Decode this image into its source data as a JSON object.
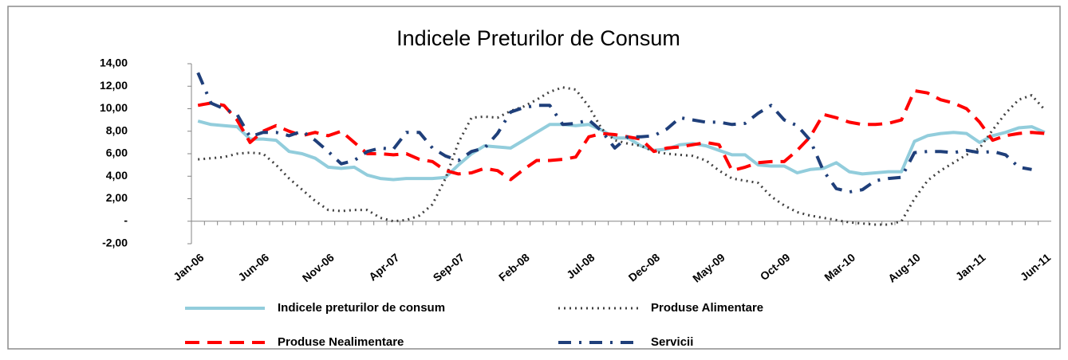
{
  "chart_data": {
    "type": "line",
    "title": "Indicele Preturilor de Consum",
    "categories": [
      "Jan-06",
      null,
      null,
      null,
      null,
      "Jun-06",
      null,
      null,
      null,
      null,
      "Nov-06",
      null,
      null,
      null,
      null,
      "Apr-07",
      null,
      null,
      null,
      null,
      "Sep-07",
      null,
      null,
      null,
      null,
      "Feb-08",
      null,
      null,
      null,
      null,
      "Jul-08",
      null,
      null,
      null,
      null,
      "Dec-08",
      null,
      null,
      null,
      null,
      "May-09",
      null,
      null,
      null,
      null,
      "Oct-09",
      null,
      null,
      null,
      null,
      "Mar-10",
      null,
      null,
      null,
      null,
      "Aug-10",
      null,
      null,
      null,
      null,
      "Jan-11",
      null,
      null,
      null,
      null,
      "Jun-11"
    ],
    "series": [
      {
        "name": "Indicele preturilor de consum",
        "color": "#92cddc",
        "dash": "solid",
        "values": [
          8.9,
          8.6,
          8.5,
          8.4,
          7.3,
          7.3,
          7.2,
          6.2,
          6.0,
          5.6,
          4.8,
          4.7,
          4.8,
          4.1,
          3.8,
          3.7,
          3.8,
          3.8,
          3.8,
          3.9,
          5.0,
          6.0,
          6.7,
          6.6,
          6.5,
          7.2,
          7.9,
          8.6,
          8.6,
          8.5,
          8.6,
          8.1,
          7.4,
          7.4,
          6.7,
          6.3,
          6.4,
          6.8,
          6.9,
          6.7,
          6.3,
          5.9,
          5.9,
          5.0,
          4.9,
          4.9,
          4.3,
          4.6,
          4.7,
          5.2,
          4.4,
          4.2,
          4.3,
          4.4,
          4.4,
          7.1,
          7.6,
          7.8,
          7.9,
          7.8,
          7.0,
          7.6,
          7.9,
          8.3,
          8.4,
          7.9
        ]
      },
      {
        "name": "Produse Alimentare",
        "color": "#404040",
        "dash": "dot",
        "values": [
          5.5,
          5.6,
          5.7,
          6.0,
          6.1,
          6.0,
          5.0,
          3.8,
          2.8,
          1.8,
          1.0,
          0.9,
          1.0,
          1.0,
          0.3,
          0.0,
          0.1,
          0.5,
          1.5,
          3.8,
          7.0,
          9.2,
          9.3,
          9.2,
          9.8,
          10.2,
          10.8,
          11.5,
          11.9,
          11.7,
          10.2,
          8.2,
          7.2,
          6.9,
          6.7,
          6.2,
          6.0,
          5.9,
          5.8,
          5.4,
          4.5,
          3.8,
          3.6,
          3.4,
          2.2,
          1.4,
          0.8,
          0.5,
          0.3,
          0.1,
          -0.1,
          -0.2,
          -0.3,
          -0.3,
          0.0,
          2.0,
          3.6,
          4.5,
          5.2,
          5.9,
          6.5,
          8.1,
          9.6,
          10.8,
          11.2,
          9.9
        ]
      },
      {
        "name": "Produse Nealimentare",
        "color": "#ff0000",
        "dash": "dash",
        "values": [
          10.3,
          10.5,
          10.3,
          9.0,
          7.0,
          8.0,
          8.5,
          8.0,
          7.6,
          7.9,
          7.6,
          8.0,
          7.0,
          6.0,
          6.0,
          5.9,
          6.0,
          5.5,
          5.3,
          4.5,
          4.2,
          4.3,
          4.7,
          4.5,
          3.7,
          4.6,
          5.4,
          5.4,
          5.5,
          5.7,
          7.5,
          7.8,
          7.7,
          7.5,
          7.3,
          6.2,
          6.5,
          6.6,
          6.8,
          7.0,
          6.8,
          4.5,
          4.8,
          5.2,
          5.3,
          5.3,
          6.3,
          7.5,
          9.5,
          9.2,
          8.8,
          8.6,
          8.6,
          8.7,
          9.0,
          11.6,
          11.4,
          10.8,
          10.5,
          10.0,
          8.8,
          7.2,
          7.6,
          7.8,
          7.9,
          7.8
        ]
      },
      {
        "name": "Servicii",
        "color": "#1f3f7a",
        "dash": "dashdot",
        "values": [
          13.2,
          10.5,
          10.0,
          9.5,
          7.5,
          7.9,
          7.9,
          7.6,
          8.0,
          7.2,
          6.2,
          5.1,
          5.4,
          6.2,
          6.5,
          6.4,
          7.9,
          7.9,
          6.5,
          5.8,
          5.4,
          6.2,
          6.5,
          7.8,
          9.7,
          10.1,
          10.3,
          10.3,
          8.6,
          8.7,
          9.0,
          8.0,
          6.5,
          7.5,
          7.5,
          7.6,
          8.2,
          9.2,
          9.0,
          8.8,
          8.8,
          8.6,
          8.7,
          9.6,
          10.3,
          9.0,
          8.5,
          7.2,
          4.5,
          2.9,
          2.6,
          2.8,
          3.6,
          3.8,
          3.9,
          6.1,
          6.2,
          6.2,
          6.1,
          6.3,
          6.1,
          6.2,
          5.9,
          4.8,
          4.6,
          null
        ]
      }
    ],
    "ylim": [
      -2,
      14
    ],
    "yticks": [
      {
        "value": -2,
        "label": "-2,00"
      },
      {
        "value": 0,
        "label": "-"
      },
      {
        "value": 2,
        "label": "2,00"
      },
      {
        "value": 4,
        "label": "4,00"
      },
      {
        "value": 6,
        "label": "6,00"
      },
      {
        "value": 8,
        "label": "8,00"
      },
      {
        "value": 10,
        "label": "10,00"
      },
      {
        "value": 12,
        "label": "12,00"
      },
      {
        "value": 14,
        "label": "14,00"
      }
    ],
    "grid": false,
    "legend": "bottom"
  }
}
